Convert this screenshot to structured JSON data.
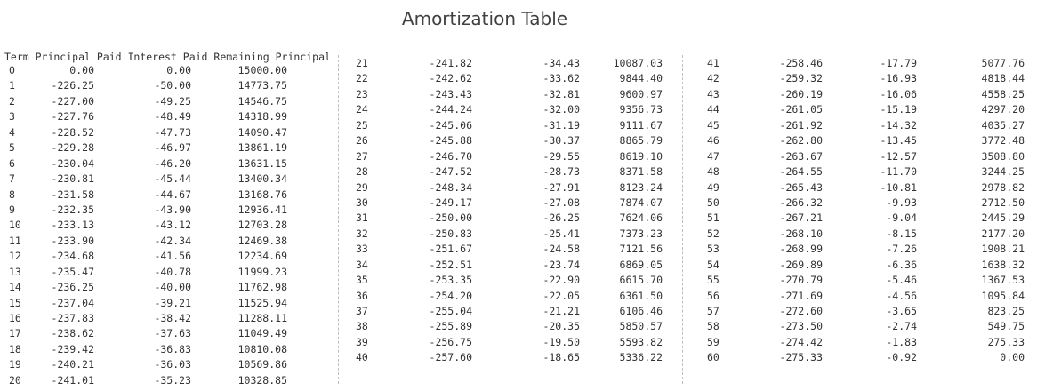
{
  "title": "Amortization Table",
  "header": "Term Principal Paid Interest Paid Remaining Principal",
  "rows": [
    [
      "0",
      "0.00",
      "0.00",
      "15000.00"
    ],
    [
      "1",
      "-226.25",
      "-50.00",
      "14773.75"
    ],
    [
      "2",
      "-227.00",
      "-49.25",
      "14546.75"
    ],
    [
      "3",
      "-227.76",
      "-48.49",
      "14318.99"
    ],
    [
      "4",
      "-228.52",
      "-47.73",
      "14090.47"
    ],
    [
      "5",
      "-229.28",
      "-46.97",
      "13861.19"
    ],
    [
      "6",
      "-230.04",
      "-46.20",
      "13631.15"
    ],
    [
      "7",
      "-230.81",
      "-45.44",
      "13400.34"
    ],
    [
      "8",
      "-231.58",
      "-44.67",
      "13168.76"
    ],
    [
      "9",
      "-232.35",
      "-43.90",
      "12936.41"
    ],
    [
      "10",
      "-233.13",
      "-43.12",
      "12703.28"
    ],
    [
      "11",
      "-233.90",
      "-42.34",
      "12469.38"
    ],
    [
      "12",
      "-234.68",
      "-41.56",
      "12234.69"
    ],
    [
      "13",
      "-235.47",
      "-40.78",
      "11999.23"
    ],
    [
      "14",
      "-236.25",
      "-40.00",
      "11762.98"
    ],
    [
      "15",
      "-237.04",
      "-39.21",
      "11525.94"
    ],
    [
      "16",
      "-237.83",
      "-38.42",
      "11288.11"
    ],
    [
      "17",
      "-238.62",
      "-37.63",
      "11049.49"
    ],
    [
      "18",
      "-239.42",
      "-36.83",
      "10810.08"
    ],
    [
      "19",
      "-240.21",
      "-36.03",
      "10569.86"
    ],
    [
      "20",
      "-241.01",
      "-35.23",
      "10328.85"
    ],
    [
      "21",
      "-241.82",
      "-34.43",
      "10087.03"
    ],
    [
      "22",
      "-242.62",
      "-33.62",
      "9844.40"
    ],
    [
      "23",
      "-243.43",
      "-32.81",
      "9600.97"
    ],
    [
      "24",
      "-244.24",
      "-32.00",
      "9356.73"
    ],
    [
      "25",
      "-245.06",
      "-31.19",
      "9111.67"
    ],
    [
      "26",
      "-245.88",
      "-30.37",
      "8865.79"
    ],
    [
      "27",
      "-246.70",
      "-29.55",
      "8619.10"
    ],
    [
      "28",
      "-247.52",
      "-28.73",
      "8371.58"
    ],
    [
      "29",
      "-248.34",
      "-27.91",
      "8123.24"
    ],
    [
      "30",
      "-249.17",
      "-27.08",
      "7874.07"
    ],
    [
      "31",
      "-250.00",
      "-26.25",
      "7624.06"
    ],
    [
      "32",
      "-250.83",
      "-25.41",
      "7373.23"
    ],
    [
      "33",
      "-251.67",
      "-24.58",
      "7121.56"
    ],
    [
      "34",
      "-252.51",
      "-23.74",
      "6869.05"
    ],
    [
      "35",
      "-253.35",
      "-22.90",
      "6615.70"
    ],
    [
      "36",
      "-254.20",
      "-22.05",
      "6361.50"
    ],
    [
      "37",
      "-255.04",
      "-21.21",
      "6106.46"
    ],
    [
      "38",
      "-255.89",
      "-20.35",
      "5850.57"
    ],
    [
      "39",
      "-256.75",
      "-19.50",
      "5593.82"
    ],
    [
      "40",
      "-257.60",
      "-18.65",
      "5336.22"
    ],
    [
      "41",
      "-258.46",
      "-17.79",
      "5077.76"
    ],
    [
      "42",
      "-259.32",
      "-16.93",
      "4818.44"
    ],
    [
      "43",
      "-260.19",
      "-16.06",
      "4558.25"
    ],
    [
      "44",
      "-261.05",
      "-15.19",
      "4297.20"
    ],
    [
      "45",
      "-261.92",
      "-14.32",
      "4035.27"
    ],
    [
      "46",
      "-262.80",
      "-13.45",
      "3772.48"
    ],
    [
      "47",
      "-263.67",
      "-12.57",
      "3508.80"
    ],
    [
      "48",
      "-264.55",
      "-11.70",
      "3244.25"
    ],
    [
      "49",
      "-265.43",
      "-10.81",
      "2978.82"
    ],
    [
      "50",
      "-266.32",
      "-9.93",
      "2712.50"
    ],
    [
      "51",
      "-267.21",
      "-9.04",
      "2445.29"
    ],
    [
      "52",
      "-268.10",
      "-8.15",
      "2177.20"
    ],
    [
      "53",
      "-268.99",
      "-7.26",
      "1908.21"
    ],
    [
      "54",
      "-269.89",
      "-6.36",
      "1638.32"
    ],
    [
      "55",
      "-270.79",
      "-5.46",
      "1367.53"
    ],
    [
      "56",
      "-271.69",
      "-4.56",
      "1095.84"
    ],
    [
      "57",
      "-272.60",
      "-3.65",
      "823.25"
    ],
    [
      "58",
      "-273.50",
      "-2.74",
      "549.75"
    ],
    [
      "59",
      "-274.42",
      "-1.83",
      "275.33"
    ],
    [
      "60",
      "-275.33",
      "-0.92",
      "0.00"
    ]
  ]
}
